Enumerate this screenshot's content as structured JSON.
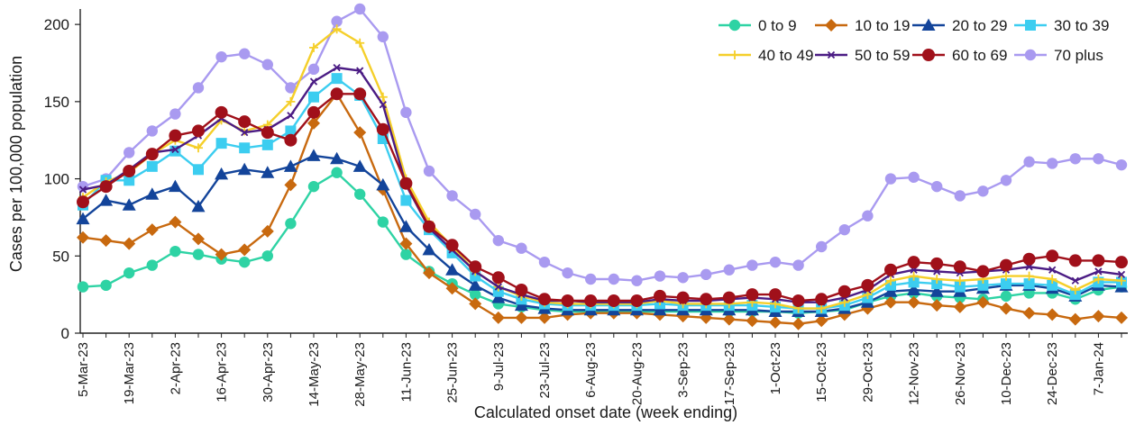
{
  "chart_data": {
    "type": "line",
    "title": "",
    "xlabel": "Calculated onset date (week ending)",
    "ylabel": "Cases per 100,000 population",
    "ylim": [
      0,
      210
    ],
    "yticks": [
      0,
      50,
      100,
      150,
      200
    ],
    "grid": false,
    "legend_position": "top-right",
    "x": [
      "5-Mar-23",
      "12-Mar-23",
      "19-Mar-23",
      "26-Mar-23",
      "2-Apr-23",
      "9-Apr-23",
      "16-Apr-23",
      "23-Apr-23",
      "30-Apr-23",
      "7-May-23",
      "14-May-23",
      "21-May-23",
      "28-May-23",
      "4-Jun-23",
      "11-Jun-23",
      "18-Jun-23",
      "25-Jun-23",
      "2-Jul-23",
      "9-Jul-23",
      "16-Jul-23",
      "23-Jul-23",
      "30-Jul-23",
      "6-Aug-23",
      "13-Aug-23",
      "20-Aug-23",
      "27-Aug-23",
      "3-Sep-23",
      "10-Sep-23",
      "17-Sep-23",
      "24-Sep-23",
      "1-Oct-23",
      "8-Oct-23",
      "15-Oct-23",
      "22-Oct-23",
      "29-Oct-23",
      "5-Nov-23",
      "12-Nov-23",
      "19-Nov-23",
      "26-Nov-23",
      "3-Dec-23",
      "10-Dec-23",
      "17-Dec-23",
      "24-Dec-23",
      "31-Dec-23",
      "7-Jan-24",
      "14-Jan-24"
    ],
    "xtick_labels": [
      "5-Mar-23",
      "19-Mar-23",
      "2-Apr-23",
      "16-Apr-23",
      "30-Apr-23",
      "14-May-23",
      "28-May-23",
      "11-Jun-23",
      "25-Jun-23",
      "9-Jul-23",
      "23-Jul-23",
      "6-Aug-23",
      "20-Aug-23",
      "3-Sep-23",
      "17-Sep-23",
      "1-Oct-23",
      "15-Oct-23",
      "29-Oct-23",
      "12-Nov-23",
      "26-Nov-23",
      "10-Dec-23",
      "24-Dec-23",
      "7-Jan-24"
    ],
    "series": [
      {
        "name": "0 to 9",
        "color": "#2ed3a4",
        "marker": "circle",
        "values": [
          30,
          31,
          39,
          44,
          53,
          51,
          48,
          46,
          50,
          71,
          95,
          104,
          90,
          72,
          51,
          40,
          32,
          25,
          19,
          17,
          15,
          14,
          14,
          14,
          14,
          14,
          14,
          14,
          14,
          14,
          14,
          13,
          14,
          15,
          20,
          24,
          26,
          24,
          23,
          22,
          24,
          26,
          26,
          22,
          28,
          30
        ]
      },
      {
        "name": "10 to 19",
        "color": "#c8690f",
        "marker": "diamond",
        "values": [
          62,
          60,
          58,
          67,
          72,
          61,
          51,
          54,
          66,
          96,
          136,
          155,
          130,
          93,
          58,
          39,
          29,
          19,
          10,
          10,
          10,
          12,
          13,
          13,
          13,
          12,
          11,
          10,
          9,
          8,
          7,
          6,
          8,
          12,
          16,
          20,
          20,
          18,
          17,
          20,
          16,
          13,
          12,
          9,
          11,
          10
        ]
      },
      {
        "name": "20 to 29",
        "color": "#13449a",
        "marker": "triangle",
        "values": [
          74,
          86,
          83,
          90,
          95,
          82,
          103,
          106,
          104,
          108,
          115,
          113,
          108,
          96,
          69,
          54,
          41,
          31,
          23,
          18,
          16,
          15,
          15,
          15,
          15,
          15,
          15,
          15,
          15,
          15,
          14,
          14,
          14,
          16,
          20,
          27,
          28,
          27,
          27,
          29,
          31,
          31,
          29,
          24,
          31,
          30
        ]
      },
      {
        "name": "30 to 39",
        "color": "#3ccdf0",
        "marker": "square",
        "values": [
          83,
          99,
          99,
          108,
          118,
          106,
          123,
          120,
          122,
          131,
          153,
          165,
          154,
          126,
          86,
          67,
          52,
          37,
          27,
          22,
          19,
          18,
          18,
          18,
          18,
          19,
          18,
          18,
          18,
          18,
          17,
          16,
          16,
          18,
          23,
          31,
          33,
          32,
          30,
          31,
          32,
          32,
          31,
          25,
          33,
          33
        ]
      },
      {
        "name": "40 to 49",
        "color": "#f5cf2a",
        "marker": "plus",
        "values": [
          88,
          98,
          104,
          116,
          125,
          120,
          138,
          131,
          135,
          150,
          185,
          197,
          188,
          153,
          100,
          72,
          56,
          40,
          30,
          24,
          20,
          19,
          19,
          19,
          19,
          21,
          19,
          19,
          19,
          20,
          19,
          16,
          16,
          20,
          25,
          34,
          37,
          35,
          34,
          35,
          37,
          37,
          35,
          28,
          35,
          34
        ]
      },
      {
        "name": "50 to 59",
        "color": "#4b1c84",
        "marker": "x",
        "values": [
          93,
          96,
          106,
          117,
          119,
          128,
          139,
          130,
          132,
          141,
          163,
          172,
          170,
          148,
          96,
          68,
          54,
          40,
          30,
          25,
          21,
          21,
          20,
          20,
          20,
          22,
          21,
          21,
          22,
          23,
          22,
          20,
          20,
          23,
          28,
          38,
          41,
          40,
          39,
          40,
          41,
          43,
          41,
          34,
          40,
          38
        ]
      },
      {
        "name": "60 to 69",
        "color": "#a0101a",
        "marker": "circle",
        "values": [
          85,
          95,
          105,
          116,
          128,
          131,
          143,
          137,
          130,
          125,
          143,
          155,
          155,
          132,
          97,
          69,
          57,
          43,
          36,
          28,
          22,
          21,
          21,
          21,
          21,
          24,
          23,
          22,
          23,
          25,
          25,
          21,
          22,
          27,
          31,
          41,
          46,
          45,
          43,
          40,
          44,
          48,
          50,
          47,
          47,
          46
        ]
      },
      {
        "name": "70 plus",
        "color": "#a99af0",
        "marker": "circle",
        "values": [
          95,
          100,
          117,
          131,
          142,
          159,
          179,
          181,
          174,
          159,
          171,
          202,
          210,
          192,
          143,
          105,
          89,
          77,
          60,
          55,
          46,
          39,
          35,
          35,
          34,
          37,
          36,
          38,
          41,
          44,
          46,
          44,
          56,
          67,
          76,
          100,
          101,
          95,
          89,
          92,
          99,
          111,
          110,
          113,
          113,
          109
        ]
      }
    ]
  }
}
